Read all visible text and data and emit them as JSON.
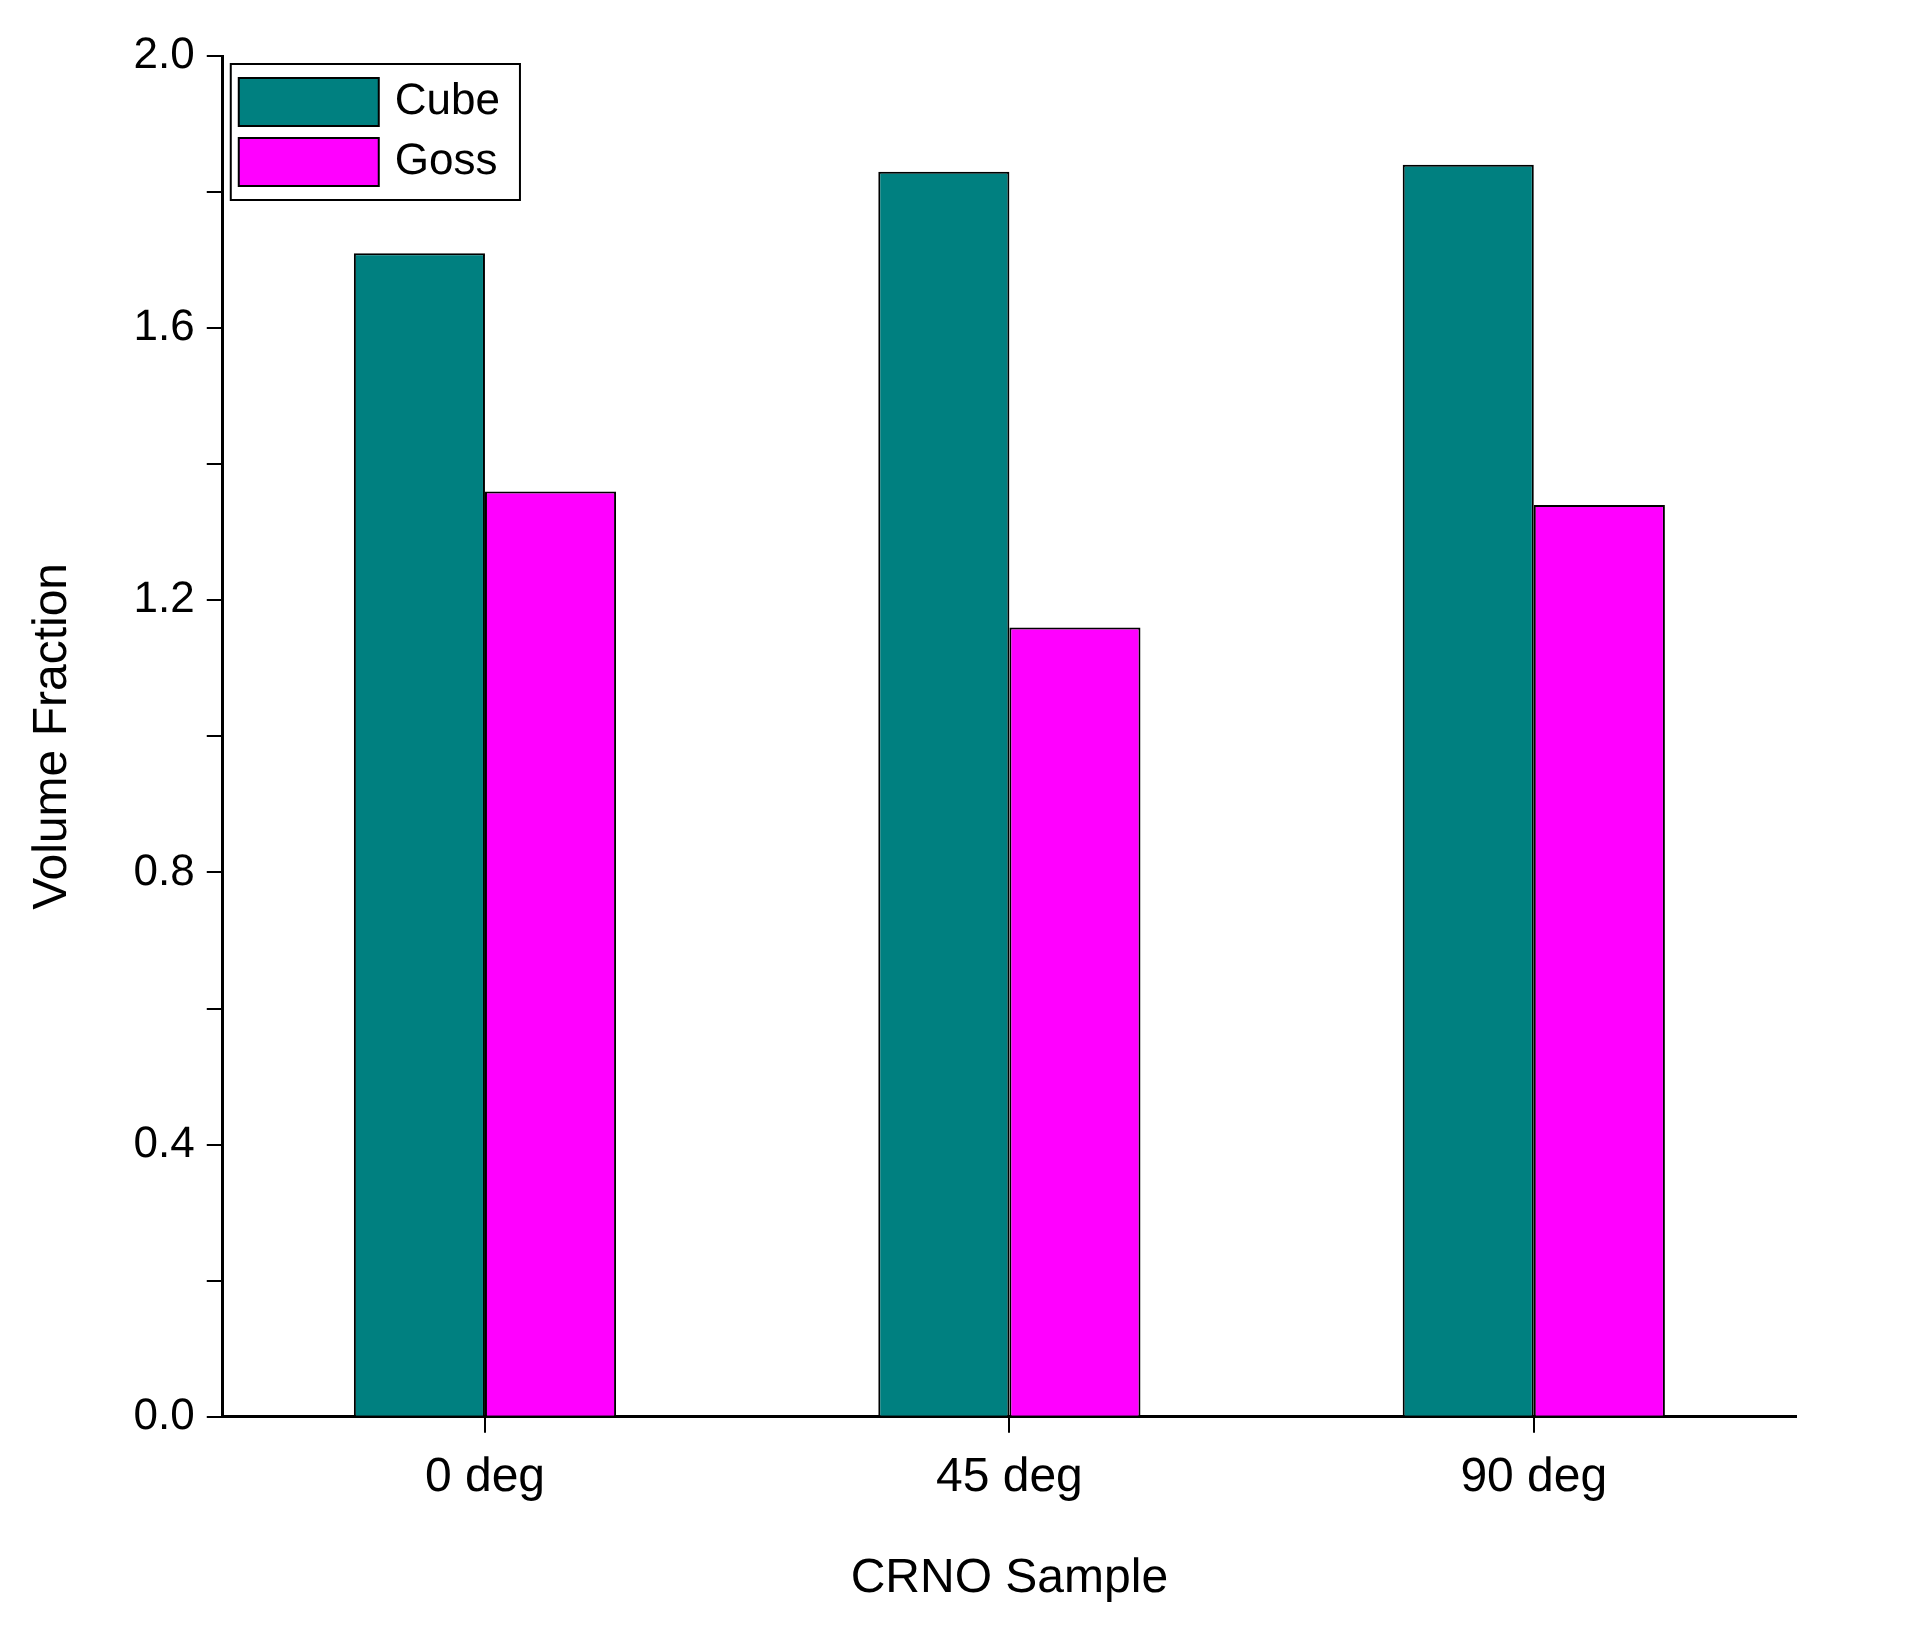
{
  "chart_data": {
    "type": "bar",
    "xlabel": "CRNO Sample",
    "ylabel": "Volume Fraction",
    "categories": [
      "0 deg",
      "45 deg",
      "90 deg"
    ],
    "series": [
      {
        "name": "Cube",
        "color": "#008080",
        "values": [
          1.71,
          1.83,
          1.84
        ]
      },
      {
        "name": "Goss",
        "color": "#ff00ff",
        "values": [
          1.36,
          1.16,
          1.34
        ]
      }
    ],
    "ylim": [
      0,
      2
    ],
    "yticks": [
      {
        "value": 0,
        "label": "0.0"
      },
      {
        "value": 0.2,
        "label": null
      },
      {
        "value": 0.4,
        "label": "0.4"
      },
      {
        "value": 0.6,
        "label": null
      },
      {
        "value": 0.8,
        "label": "0.8"
      },
      {
        "value": 1.0,
        "label": null
      },
      {
        "value": 1.2,
        "label": "1.2"
      },
      {
        "value": 1.4,
        "label": null
      },
      {
        "value": 1.6,
        "label": "1.6"
      },
      {
        "value": 1.8,
        "label": null
      },
      {
        "value": 2.0,
        "label": "2.0"
      }
    ],
    "grid": false,
    "legend": "top left"
  }
}
